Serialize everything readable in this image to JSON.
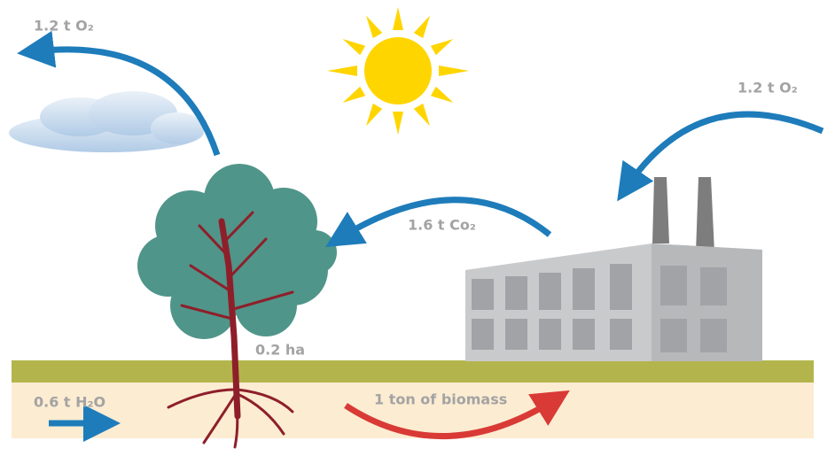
{
  "labels": {
    "oxygen_left": "1.2 t O₂",
    "oxygen_right": "1.2 t O₂",
    "co2": "1.6 t Co₂",
    "area": "0.2 ha",
    "water": "0.6 t H₂O",
    "biomass": "1 ton of biomass"
  }
}
